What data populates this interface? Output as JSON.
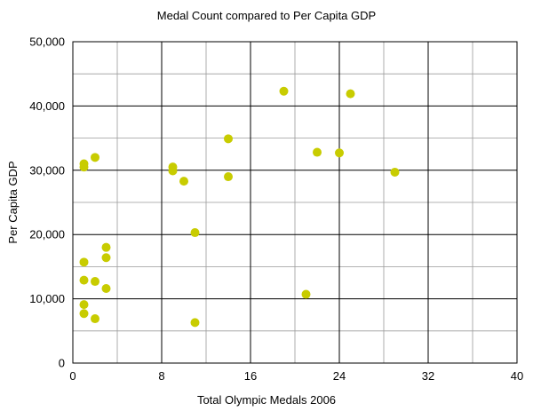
{
  "chart_data": {
    "type": "scatter",
    "title": "Medal Count compared to Per Capita GDP",
    "xlabel": "Total Olympic Medals 2006",
    "ylabel": "Per Capita GDP",
    "xlim": [
      0,
      40
    ],
    "ylim": [
      0,
      50000
    ],
    "x_ticks": [
      "0",
      "8",
      "16",
      "24",
      "32",
      "40"
    ],
    "y_ticks": [
      "0",
      "10,000",
      "20,000",
      "30,000",
      "40,000",
      "50,000"
    ],
    "grid": true,
    "legend": "none",
    "point_color": "#c8cc00",
    "points": [
      {
        "x": 1,
        "y": 31000
      },
      {
        "x": 1,
        "y": 30500
      },
      {
        "x": 2,
        "y": 32000
      },
      {
        "x": 1,
        "y": 15700
      },
      {
        "x": 1,
        "y": 12900
      },
      {
        "x": 1,
        "y": 9100
      },
      {
        "x": 1,
        "y": 7700
      },
      {
        "x": 2,
        "y": 12700
      },
      {
        "x": 2,
        "y": 6900
      },
      {
        "x": 3,
        "y": 18000
      },
      {
        "x": 3,
        "y": 16400
      },
      {
        "x": 3,
        "y": 11600
      },
      {
        "x": 9,
        "y": 30500
      },
      {
        "x": 9,
        "y": 29900
      },
      {
        "x": 10,
        "y": 28300
      },
      {
        "x": 11,
        "y": 20300
      },
      {
        "x": 11,
        "y": 6300
      },
      {
        "x": 14,
        "y": 34900
      },
      {
        "x": 14,
        "y": 29000
      },
      {
        "x": 19,
        "y": 42300
      },
      {
        "x": 21,
        "y": 10700
      },
      {
        "x": 22,
        "y": 32800
      },
      {
        "x": 24,
        "y": 32700
      },
      {
        "x": 25,
        "y": 41900
      },
      {
        "x": 29,
        "y": 29700
      }
    ]
  }
}
